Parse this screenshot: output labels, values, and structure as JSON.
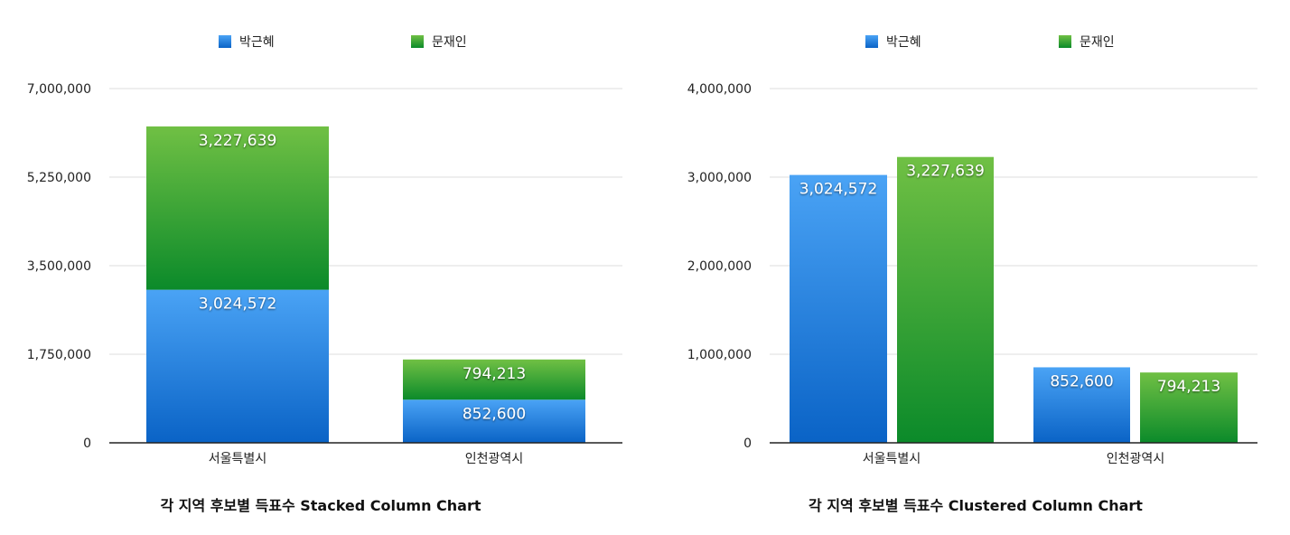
{
  "colors": {
    "blue_light": "#4aa3f5",
    "blue_dark": "#0a63c6",
    "green_light": "#70c044",
    "green_dark": "#0b8a2a"
  },
  "chart_data": [
    {
      "type": "bar",
      "mode": "stacked",
      "title": "각 지역 후보별 득표수 Stacked Column Chart",
      "categories": [
        "서울특별시",
        "인천광역시"
      ],
      "series": [
        {
          "name": "박근혜",
          "values": [
            3024572,
            852600
          ],
          "labels": [
            "3,024,572",
            "852,600"
          ]
        },
        {
          "name": "문재인",
          "values": [
            3227639,
            794213
          ],
          "labels": [
            "3,227,639",
            "794,213"
          ]
        }
      ],
      "ylim": [
        0,
        7000000
      ],
      "yticks": [
        0,
        1750000,
        3500000,
        5250000,
        7000000
      ],
      "ytick_labels": [
        "0",
        "1,750,000",
        "3,500,000",
        "5,250,000",
        "7,000,000"
      ],
      "grid": true,
      "legend": "top"
    },
    {
      "type": "bar",
      "mode": "clustered",
      "title": "각 지역 후보별 득표수 Clustered Column Chart",
      "categories": [
        "서울특별시",
        "인천광역시"
      ],
      "series": [
        {
          "name": "박근혜",
          "values": [
            3024572,
            852600
          ],
          "labels": [
            "3,024,572",
            "852,600"
          ]
        },
        {
          "name": "문재인",
          "values": [
            3227639,
            794213
          ],
          "labels": [
            "3,227,639",
            "794,213"
          ]
        }
      ],
      "ylim": [
        0,
        4000000
      ],
      "yticks": [
        0,
        1000000,
        2000000,
        3000000,
        4000000
      ],
      "ytick_labels": [
        "0",
        "1,000,000",
        "2,000,000",
        "3,000,000",
        "4,000,000"
      ],
      "grid": true,
      "legend": "top"
    }
  ]
}
